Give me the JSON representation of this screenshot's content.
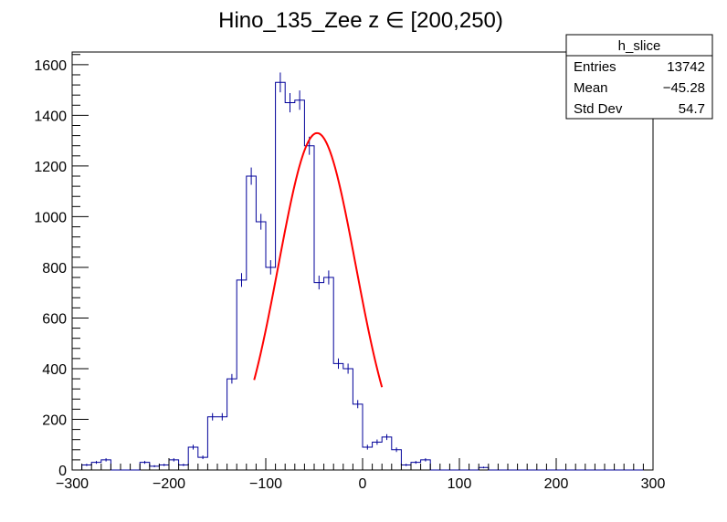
{
  "chart_data": {
    "type": "bar",
    "title": "Hino_135_Zee z  ∈ [200,250)",
    "xlabel": "",
    "ylabel": "",
    "xlim": [
      -300,
      300
    ],
    "ylim": [
      0,
      1650
    ],
    "x_ticks": [
      "−300",
      "−200",
      "−100",
      "0",
      "100",
      "200",
      "300"
    ],
    "y_ticks": [
      "0",
      "200",
      "400",
      "600",
      "800",
      "1000",
      "1200",
      "1400",
      "1600"
    ],
    "grid": false,
    "bin_width": 10,
    "bin_start": -290,
    "histogram": {
      "name": "h_slice",
      "color": "#000099",
      "values": [
        20,
        30,
        40,
        0,
        0,
        0,
        30,
        15,
        20,
        40,
        20,
        90,
        50,
        210,
        210,
        360,
        750,
        1160,
        980,
        800,
        1530,
        1450,
        1460,
        1280,
        740,
        760,
        420,
        400,
        260,
        90,
        110,
        130,
        80,
        20,
        30,
        40,
        0,
        0,
        0,
        0,
        0,
        10,
        0,
        0,
        0,
        0,
        0,
        0,
        0,
        0,
        0,
        0,
        0,
        0,
        0,
        0,
        0,
        0
      ]
    },
    "fit": {
      "type": "gaussian",
      "color": "#ff0000",
      "amplitude": 1330,
      "mean": -47,
      "sigma": 40,
      "x_range": [
        -112,
        20
      ]
    }
  },
  "stats_box": {
    "name": "h_slice",
    "rows": [
      {
        "label": "Entries",
        "value": "13742"
      },
      {
        "label": "Mean",
        "value": "−45.28"
      },
      {
        "label": "Std Dev",
        "value": "54.7"
      }
    ]
  }
}
